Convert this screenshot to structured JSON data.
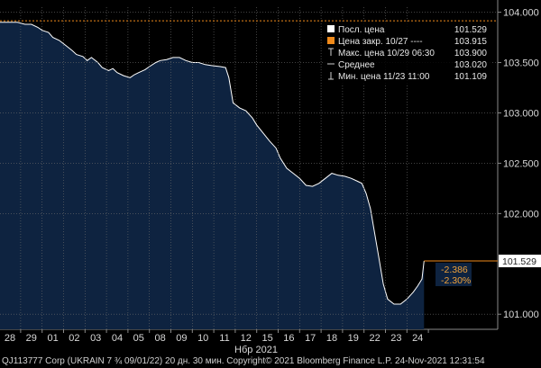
{
  "chart_data": {
    "type": "area",
    "ylim": [
      100.85,
      104.05
    ],
    "y_ticks": [
      "104.000",
      "103.500",
      "103.000",
      "102.500",
      "102.000",
      "101.000"
    ],
    "y_tick_values": [
      104.0,
      103.5,
      103.0,
      102.5,
      102.0,
      101.0
    ],
    "x_ticks": [
      "28",
      "29",
      "01",
      "02",
      "03",
      "04",
      "05",
      "08",
      "09",
      "10",
      "11",
      "12",
      "15",
      "16",
      "17",
      "18",
      "19",
      "22",
      "23",
      "24"
    ],
    "x_month_label": "Нбр 2021",
    "series": [
      {
        "values": [
          [
            0,
            103.9
          ],
          [
            0.35,
            103.9
          ],
          [
            0.7,
            103.88
          ],
          [
            1.0,
            103.88
          ],
          [
            1.3,
            103.85
          ],
          [
            1.5,
            103.82
          ],
          [
            1.8,
            103.8
          ],
          [
            2.0,
            103.75
          ],
          [
            2.3,
            103.72
          ],
          [
            2.6,
            103.67
          ],
          [
            2.9,
            103.62
          ],
          [
            3.1,
            103.58
          ],
          [
            3.4,
            103.56
          ],
          [
            3.6,
            103.52
          ],
          [
            3.8,
            103.55
          ],
          [
            4.1,
            103.5
          ],
          [
            4.3,
            103.45
          ],
          [
            4.6,
            103.42
          ],
          [
            4.8,
            103.44
          ],
          [
            5.0,
            103.4
          ],
          [
            5.3,
            103.37
          ],
          [
            5.6,
            103.35
          ],
          [
            5.8,
            103.38
          ],
          [
            6.0,
            103.4
          ],
          [
            6.3,
            103.43
          ],
          [
            6.5,
            103.46
          ],
          [
            6.8,
            103.5
          ],
          [
            7.0,
            103.52
          ],
          [
            7.3,
            103.53
          ],
          [
            7.6,
            103.55
          ],
          [
            7.9,
            103.55
          ],
          [
            8.2,
            103.52
          ],
          [
            8.5,
            103.5
          ],
          [
            8.8,
            103.5
          ],
          [
            9.1,
            103.48
          ],
          [
            9.4,
            103.47
          ],
          [
            9.8,
            103.46
          ],
          [
            10.05,
            103.45
          ],
          [
            10.2,
            103.35
          ],
          [
            10.4,
            103.1
          ],
          [
            10.7,
            103.05
          ],
          [
            11.0,
            103.02
          ],
          [
            11.3,
            102.95
          ],
          [
            11.5,
            102.88
          ],
          [
            11.8,
            102.8
          ],
          [
            12.1,
            102.72
          ],
          [
            12.4,
            102.65
          ],
          [
            12.6,
            102.55
          ],
          [
            12.9,
            102.45
          ],
          [
            13.2,
            102.4
          ],
          [
            13.5,
            102.35
          ],
          [
            13.8,
            102.28
          ],
          [
            14.1,
            102.27
          ],
          [
            14.4,
            102.3
          ],
          [
            14.7,
            102.35
          ],
          [
            15.0,
            102.4
          ],
          [
            15.3,
            102.38
          ],
          [
            15.6,
            102.37
          ],
          [
            15.9,
            102.35
          ],
          [
            16.2,
            102.32
          ],
          [
            16.4,
            102.3
          ],
          [
            16.6,
            102.2
          ],
          [
            16.8,
            102.05
          ],
          [
            17.0,
            101.8
          ],
          [
            17.2,
            101.55
          ],
          [
            17.4,
            101.3
          ],
          [
            17.6,
            101.15
          ],
          [
            17.9,
            101.1
          ],
          [
            18.2,
            101.1
          ],
          [
            18.5,
            101.15
          ],
          [
            18.8,
            101.22
          ],
          [
            19.0,
            101.28
          ],
          [
            19.2,
            101.35
          ],
          [
            19.3,
            101.529
          ]
        ]
      }
    ],
    "legend": {
      "rows": [
        {
          "label": "Посл. цена",
          "value": "101.529",
          "swatch": "#ffffff"
        },
        {
          "label": "Цена закр. 10/27  ----",
          "value": "103.915",
          "swatch": "#f08a1a"
        },
        {
          "label": "Макс. цена 10/29 06:30",
          "value": "103.900",
          "swatch": "none"
        },
        {
          "label": "Среднее",
          "value": "103.020",
          "swatch": "none"
        },
        {
          "label": "Мин. цена 11/23 11:00",
          "value": "101.109",
          "swatch": "none"
        }
      ]
    },
    "last_price_label": "101.529",
    "change_abs": "-2.386",
    "change_pct": "-2.30%",
    "prev_close": 103.915,
    "footer": "QJ113777 Corp (UKRAIN 7 ¾ 09/01/22) 20 дн. 30 мин. Copyright© 2021 Bloomberg Finance L.P. 24-Nov-2021 12:31:54",
    "grid": true
  },
  "colors": {
    "background": "#000000",
    "area_fill": "#0e2340",
    "line": "#ffffff",
    "grid": "#6b6b6b",
    "prev_close_line": "#f08a1a",
    "change_text": "#f0a23a"
  }
}
